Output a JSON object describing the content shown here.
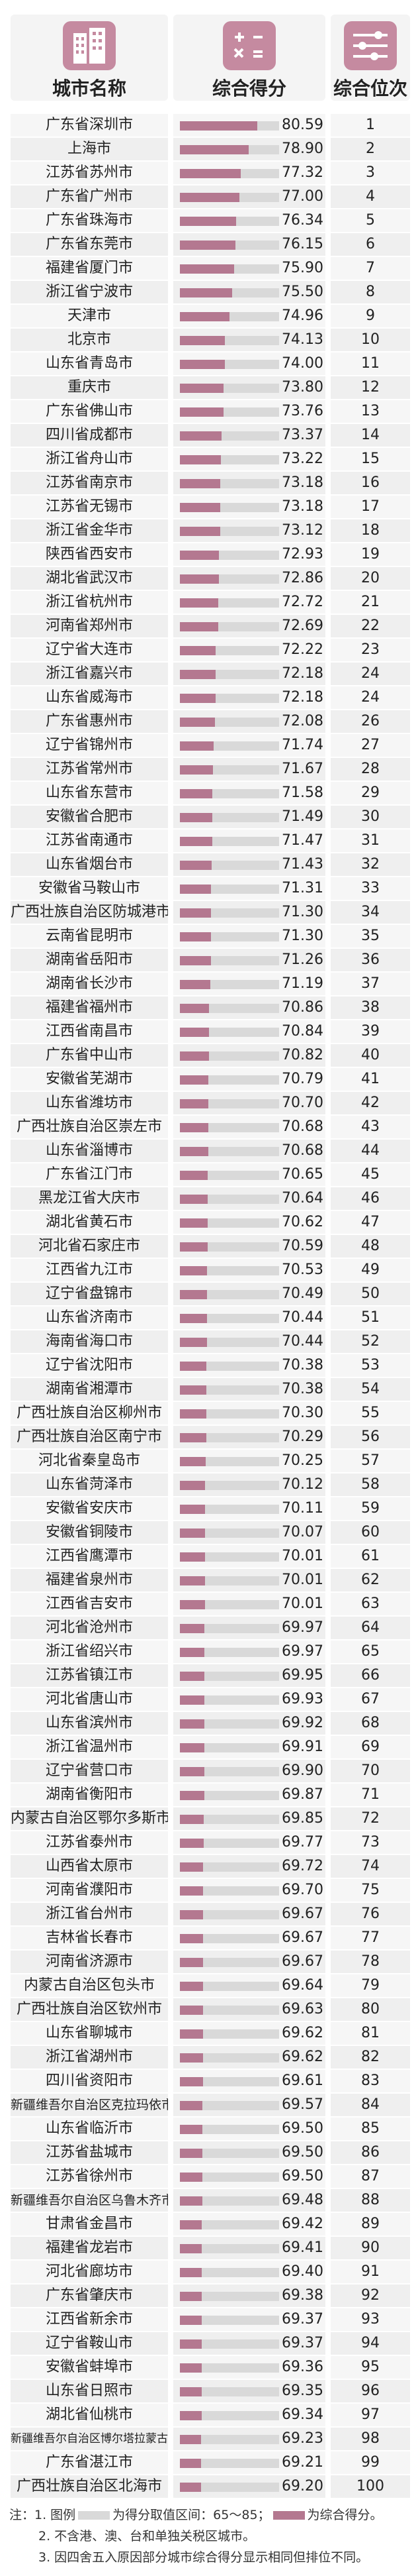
{
  "header": {
    "city_label": "城市名称",
    "score_label": "综合得分",
    "rank_label": "综合位次",
    "city_icon": "buildings-icon",
    "score_icon": "calculator-icon",
    "rank_icon": "sliders-icon"
  },
  "colors": {
    "bar": "#b47890",
    "bar_bg": "#d9d9d9"
  },
  "chart_data": {
    "type": "bar",
    "orientation": "horizontal",
    "xlim": [
      65,
      85
    ],
    "categories": [
      "广东省深圳市",
      "上海市",
      "江苏省苏州市",
      "广东省广州市",
      "广东省珠海市",
      "广东省东莞市",
      "福建省厦门市",
      "浙江省宁波市",
      "天津市",
      "北京市",
      "山东省青岛市",
      "重庆市",
      "广东省佛山市",
      "四川省成都市",
      "浙江省舟山市",
      "江苏省南京市",
      "江苏省无锡市",
      "浙江省金华市",
      "陕西省西安市",
      "湖北省武汉市",
      "浙江省杭州市",
      "河南省郑州市",
      "辽宁省大连市",
      "浙江省嘉兴市",
      "山东省威海市",
      "广东省惠州市",
      "辽宁省锦州市",
      "江苏省常州市",
      "山东省东营市",
      "安徽省合肥市",
      "江苏省南通市",
      "山东省烟台市",
      "安徽省马鞍山市",
      "广西壮族自治区防城港市",
      "云南省昆明市",
      "湖南省岳阳市",
      "湖南省长沙市",
      "福建省福州市",
      "江西省南昌市",
      "广东省中山市",
      "安徽省芜湖市",
      "山东省潍坊市",
      "广西壮族自治区崇左市",
      "山东省淄博市",
      "广东省江门市",
      "黑龙江省大庆市",
      "湖北省黄石市",
      "河北省石家庄市",
      "江西省九江市",
      "辽宁省盘锦市",
      "山东省济南市",
      "海南省海口市",
      "辽宁省沈阳市",
      "湖南省湘潭市",
      "广西壮族自治区柳州市",
      "广西壮族自治区南宁市",
      "河北省秦皇岛市",
      "山东省菏泽市",
      "安徽省安庆市",
      "安徽省铜陵市",
      "江西省鹰潭市",
      "福建省泉州市",
      "江西省吉安市",
      "河北省沧州市",
      "浙江省绍兴市",
      "江苏省镇江市",
      "河北省唐山市",
      "山东省滨州市",
      "浙江省温州市",
      "辽宁省营口市",
      "湖南省衡阳市",
      "内蒙古自治区鄂尔多斯市",
      "江苏省泰州市",
      "山西省太原市",
      "河南省濮阳市",
      "浙江省台州市",
      "吉林省长春市",
      "河南省济源市",
      "内蒙古自治区包头市",
      "广西壮族自治区钦州市",
      "山东省聊城市",
      "浙江省湖州市",
      "四川省资阳市",
      "新疆维吾尔自治区克拉玛依市",
      "山东省临沂市",
      "江苏省盐城市",
      "江苏省徐州市",
      "新疆维吾尔自治区乌鲁木齐市",
      "甘肃省金昌市",
      "福建省龙岩市",
      "河北省廊坊市",
      "广东省肇庆市",
      "江西省新余市",
      "辽宁省鞍山市",
      "安徽省蚌埠市",
      "山东省日照市",
      "湖北省仙桃市",
      "新疆维吾尔自治区博尔塔拉蒙古自治州",
      "广东省湛江市",
      "广西壮族自治区北海市"
    ],
    "values": [
      80.59,
      78.9,
      77.32,
      77.0,
      76.34,
      76.15,
      75.9,
      75.5,
      74.96,
      74.13,
      74.0,
      73.8,
      73.76,
      73.37,
      73.22,
      73.18,
      73.18,
      73.12,
      72.93,
      72.86,
      72.72,
      72.69,
      72.22,
      72.18,
      72.18,
      72.08,
      71.74,
      71.67,
      71.58,
      71.49,
      71.47,
      71.43,
      71.31,
      71.3,
      71.3,
      71.26,
      71.19,
      70.86,
      70.84,
      70.82,
      70.79,
      70.7,
      70.68,
      70.68,
      70.65,
      70.64,
      70.62,
      70.59,
      70.53,
      70.49,
      70.44,
      70.44,
      70.38,
      70.38,
      70.3,
      70.29,
      70.25,
      70.12,
      70.11,
      70.07,
      70.01,
      70.01,
      70.01,
      69.97,
      69.97,
      69.95,
      69.93,
      69.92,
      69.91,
      69.9,
      69.87,
      69.85,
      69.77,
      69.72,
      69.7,
      69.67,
      69.67,
      69.67,
      69.64,
      69.63,
      69.62,
      69.62,
      69.61,
      69.57,
      69.5,
      69.5,
      69.5,
      69.48,
      69.42,
      69.41,
      69.4,
      69.38,
      69.37,
      69.37,
      69.36,
      69.35,
      69.34,
      69.23,
      69.21,
      69.2
    ],
    "values_text": [
      "80.59",
      "78.90",
      "77.32",
      "77.00",
      "76.34",
      "76.15",
      "75.90",
      "75.50",
      "74.96",
      "74.13",
      "74.00",
      "73.80",
      "73.76",
      "73.37",
      "73.22",
      "73.18",
      "73.18",
      "73.12",
      "72.93",
      "72.86",
      "72.72",
      "72.69",
      "72.22",
      "72.18",
      "72.18",
      "72.08",
      "71.74",
      "71.67",
      "71.58",
      "71.49",
      "71.47",
      "71.43",
      "71.31",
      "71.30",
      "71.30",
      "71.26",
      "71.19",
      "70.86",
      "70.84",
      "70.82",
      "70.79",
      "70.70",
      "70.68",
      "70.68",
      "70.65",
      "70.64",
      "70.62",
      "70.59",
      "70.53",
      "70.49",
      "70.44",
      "70.44",
      "70.38",
      "70.38",
      "70.30",
      "70.29",
      "70.25",
      "70.12",
      "70.11",
      "70.07",
      "70.01",
      "70.01",
      "70.01",
      "69.97",
      "69.97",
      "69.95",
      "69.93",
      "69.92",
      "69.91",
      "69.90",
      "69.87",
      "69.85",
      "69.77",
      "69.72",
      "69.70",
      "69.67",
      "69.67",
      "69.67",
      "69.64",
      "69.63",
      "69.62",
      "69.62",
      "69.61",
      "69.57",
      "69.50",
      "69.50",
      "69.50",
      "69.48",
      "69.42",
      "69.41",
      "69.40",
      "69.38",
      "69.37",
      "69.37",
      "69.36",
      "69.35",
      "69.34",
      "69.23",
      "69.21",
      "69.20"
    ],
    "ranks": [
      "1",
      "2",
      "3",
      "4",
      "5",
      "6",
      "7",
      "8",
      "9",
      "10",
      "11",
      "12",
      "13",
      "14",
      "15",
      "16",
      "17",
      "18",
      "19",
      "20",
      "21",
      "22",
      "23",
      "24",
      "24",
      "26",
      "27",
      "28",
      "29",
      "30",
      "31",
      "32",
      "33",
      "34",
      "35",
      "36",
      "37",
      "38",
      "39",
      "40",
      "41",
      "42",
      "43",
      "44",
      "45",
      "46",
      "47",
      "48",
      "49",
      "50",
      "51",
      "52",
      "53",
      "54",
      "55",
      "56",
      "57",
      "58",
      "59",
      "60",
      "61",
      "62",
      "63",
      "64",
      "65",
      "66",
      "67",
      "68",
      "69",
      "70",
      "71",
      "72",
      "73",
      "74",
      "75",
      "76",
      "77",
      "78",
      "79",
      "80",
      "81",
      "82",
      "83",
      "84",
      "85",
      "86",
      "87",
      "88",
      "89",
      "90",
      "91",
      "92",
      "93",
      "94",
      "95",
      "96",
      "97",
      "98",
      "99",
      "100"
    ]
  },
  "notes": {
    "line1_prefix": "注：1. 图例",
    "line1_mid": "为得分取值区间：65～85；",
    "line1_suffix": "为综合得分。",
    "line2": "2. 不含港、澳、台和单独关税区城市。",
    "line3": "3. 因四舍五入原因部分城市综合得分显示相同但排位不同。"
  }
}
